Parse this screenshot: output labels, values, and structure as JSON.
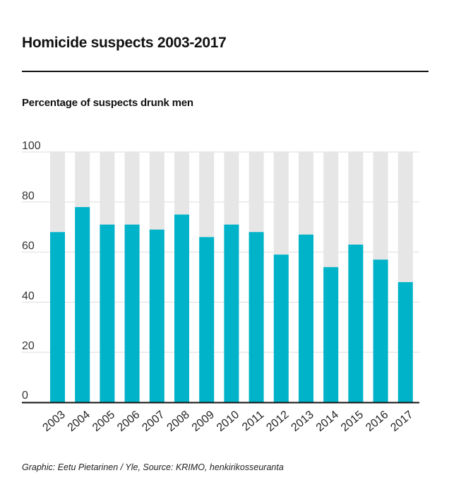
{
  "header": {
    "title": "Homicide suspects 2003-2017",
    "subtitle": "Percentage of suspects drunk men"
  },
  "footer": {
    "source": "Graphic: Eetu Pietarinen / Yle, Source: KRIMO, henkirikosseuranta"
  },
  "chart_data": {
    "type": "bar",
    "categories": [
      "2003",
      "2004",
      "2005",
      "2006",
      "2007",
      "2008",
      "2009",
      "2010",
      "2011",
      "2012",
      "2013",
      "2014",
      "2015",
      "2016",
      "2017"
    ],
    "values": [
      68,
      78,
      71,
      71,
      69,
      75,
      66,
      71,
      68,
      59,
      67,
      54,
      63,
      57,
      48
    ],
    "background_total": 100,
    "ylim": [
      0,
      100
    ],
    "yticks": [
      0,
      20,
      40,
      60,
      80,
      100
    ],
    "grid": true,
    "colors": {
      "bar": "#00b3c9",
      "background_bar": "#e6e6e6",
      "grid": "#dddddd",
      "axis": "#111111"
    }
  }
}
